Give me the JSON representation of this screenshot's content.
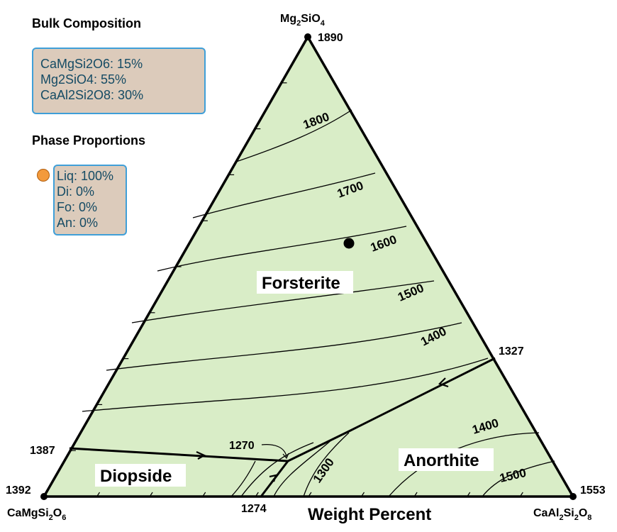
{
  "bulk_composition": {
    "title": "Bulk Composition",
    "items": [
      "CaMgSi2O6: 15%",
      "Mg2SiO4: 55%",
      "CaAl2Si2O8: 30%"
    ]
  },
  "phase_proportions": {
    "title": "Phase Proportions",
    "items": [
      "Liq: 100%",
      "Di: 0%",
      "Fo: 0%",
      "An: 0%"
    ]
  },
  "vertices": {
    "top": {
      "name_main": "Mg",
      "sub1": "2",
      "mid": "SiO",
      "sub2": "4",
      "temp": "1890"
    },
    "left": {
      "name_a": "CaMgSi",
      "sub1": "2",
      "name_b": "O",
      "sub2": "6",
      "temp": "1392"
    },
    "right": {
      "name_a": "CaAl",
      "sub1": "2",
      "name_b": "Si",
      "sub2": "2",
      "name_c": "O",
      "sub3": "8",
      "temp": "1553"
    }
  },
  "edge_temps": {
    "right_edge": "1327",
    "left_edge": "1387",
    "bottom_edge": "1274"
  },
  "fields": {
    "forsterite": "Forsterite",
    "diopside": "Diopside",
    "anorthite": "Anorthite"
  },
  "isotherms": {
    "fo_1800": "1800",
    "fo_1700": "1700",
    "fo_1600": "1600",
    "fo_1500": "1500",
    "fo_1400": "1400",
    "an_1400": "1400",
    "an_1500": "1500",
    "an_1300": "1300",
    "eutectic_1270": "1270"
  },
  "axis_title": "Weight Percent",
  "colors": {
    "field_fill": "#d9edc7",
    "panel_fill": "#dccbbb",
    "panel_border": "#3f9fd8",
    "phase_marker": "#f39a3c"
  }
}
